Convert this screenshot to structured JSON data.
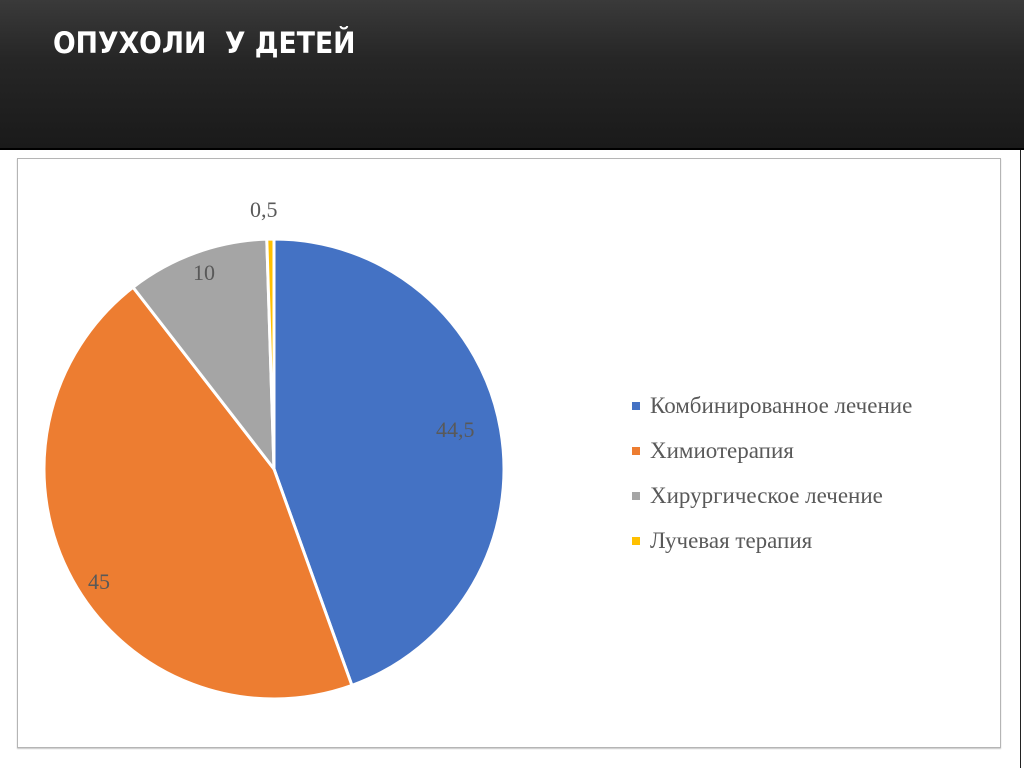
{
  "header": {
    "title": "ОПУХОЛИ  У ДЕТЕЙ"
  },
  "legend": {
    "items": [
      {
        "label": "Комбинированное лечение",
        "color": "#4472c4"
      },
      {
        "label": "Химиотерапия",
        "color": "#ed7d31"
      },
      {
        "label": "Хирургическое лечение",
        "color": "#a5a5a5"
      },
      {
        "label": "Лучевая терапия",
        "color": "#ffc000"
      }
    ]
  },
  "labels": {
    "combined": "44,5",
    "chemo": "45",
    "surgery": "10",
    "radiation": "0,5"
  },
  "chart_data": {
    "type": "pie",
    "title": "ОПУХОЛИ  У ДЕТЕЙ",
    "categories": [
      "Комбинированное лечение",
      "Химиотерапия",
      "Хирургическое лечение",
      "Лучевая терапия"
    ],
    "values": [
      44.5,
      45,
      10,
      0.5
    ],
    "data_labels": [
      "44,5",
      "45",
      "10",
      "0,5"
    ],
    "colors": [
      "#4472c4",
      "#ed7d31",
      "#a5a5a5",
      "#ffc000"
    ],
    "start_angle": "12 o'clock, clockwise",
    "legend_position": "right"
  }
}
